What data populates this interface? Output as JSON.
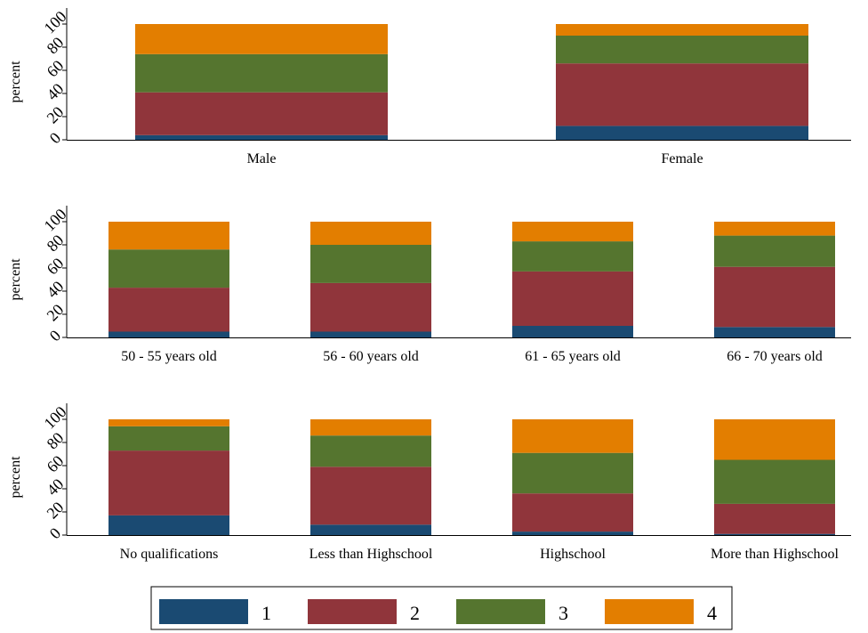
{
  "chart_data": [
    {
      "type": "bar",
      "stacked": true,
      "ylabel": "percent",
      "ylim": [
        0,
        100
      ],
      "yticks": [
        0,
        20,
        40,
        60,
        80,
        100
      ],
      "categories": [
        "Male",
        "Female"
      ],
      "series": [
        {
          "name": "1",
          "values": [
            4,
            12
          ]
        },
        {
          "name": "2",
          "values": [
            37,
            54
          ]
        },
        {
          "name": "3",
          "values": [
            33,
            24
          ]
        },
        {
          "name": "4",
          "values": [
            26,
            10
          ]
        }
      ]
    },
    {
      "type": "bar",
      "stacked": true,
      "ylabel": "percent",
      "ylim": [
        0,
        100
      ],
      "yticks": [
        0,
        20,
        40,
        60,
        80,
        100
      ],
      "categories": [
        "50 - 55 years old",
        "56 - 60 years old",
        "61 - 65 years old",
        "66 - 70 years old"
      ],
      "series": [
        {
          "name": "1",
          "values": [
            5,
            5,
            10,
            9
          ]
        },
        {
          "name": "2",
          "values": [
            38,
            42,
            47,
            52
          ]
        },
        {
          "name": "3",
          "values": [
            33,
            33,
            26,
            27
          ]
        },
        {
          "name": "4",
          "values": [
            24,
            20,
            17,
            12
          ]
        }
      ]
    },
    {
      "type": "bar",
      "stacked": true,
      "ylabel": "percent",
      "ylim": [
        0,
        100
      ],
      "yticks": [
        0,
        20,
        40,
        60,
        80,
        100
      ],
      "categories": [
        "No qualifications",
        "Less than Highschool",
        "Highschool",
        "More than Highschool"
      ],
      "series": [
        {
          "name": "1",
          "values": [
            17,
            9,
            3,
            1
          ]
        },
        {
          "name": "2",
          "values": [
            56,
            50,
            33,
            26
          ]
        },
        {
          "name": "3",
          "values": [
            21,
            27,
            35,
            38
          ]
        },
        {
          "name": "4",
          "values": [
            6,
            14,
            29,
            35
          ]
        }
      ]
    }
  ],
  "legend": {
    "position": "bottom",
    "items": [
      {
        "label": "1",
        "color": "#1a4a72"
      },
      {
        "label": "2",
        "color": "#90353b"
      },
      {
        "label": "3",
        "color": "#55752f"
      },
      {
        "label": "4",
        "color": "#e37e00"
      }
    ]
  }
}
